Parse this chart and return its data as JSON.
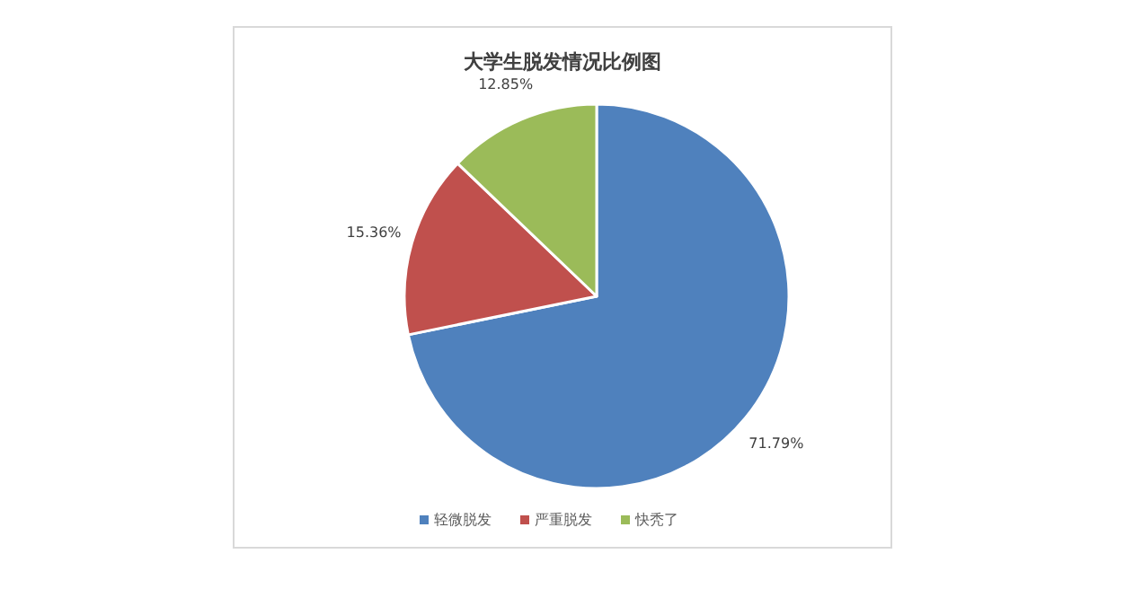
{
  "chart_data": {
    "type": "pie",
    "title": "大学生脱发情况比例图",
    "categories": [
      "轻微脱发",
      "严重脱发",
      "快秃了"
    ],
    "values": [
      71.79,
      15.36,
      12.85
    ],
    "colors": [
      "#4f81bd",
      "#c0504d",
      "#9bbb59"
    ],
    "value_labels": [
      "71.79%",
      "15.36%",
      "12.85%"
    ],
    "legend": "bottom"
  }
}
